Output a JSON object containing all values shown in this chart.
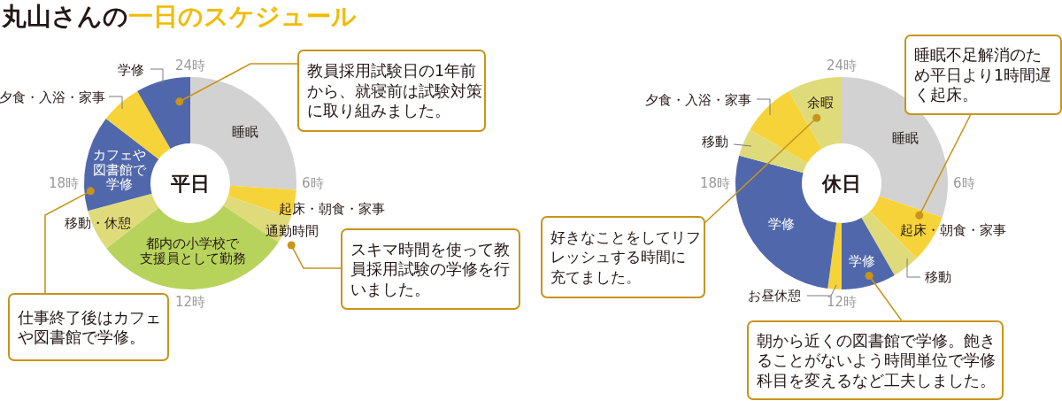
{
  "chart_data": [
    {
      "type": "donut",
      "title": "丸山さんの一日のスケジュール",
      "subtitle": "平日",
      "categories": [
        "睡眠",
        "起床・朝食・家事",
        "通勤時間",
        "都内の小学校で支援員として勤務",
        "移動・休憩",
        "カフェや図書館で学修",
        "夕食・入浴・家事",
        "学修"
      ],
      "values": [
        26.0,
        4.2,
        4.2,
        30.1,
        6.3,
        14.6,
        6.3,
        8.3
      ],
      "colors": [
        "#d3d2d2",
        "#f7d33a",
        "#dfdb7a",
        "#b8d35b",
        "#dfdb7a",
        "#5068ab",
        "#f7d33a",
        "#5068ab"
      ],
      "annotations": [
        "24時",
        "6時",
        "12時",
        "18時",
        "教員採用試験日の1年前から、就寝前は試験対策に取り組みました。",
        "スキマ時間を使って教員採用試験の学修を行いました。",
        "仕事終了後はカフェや図書館で学修。"
      ]
    },
    {
      "type": "donut",
      "subtitle": "休日",
      "categories": [
        "睡眠",
        "起床・朝食・家事",
        "移動",
        "学修",
        "お昼休憩",
        "学修",
        "移動",
        "夕食・入浴・家事",
        "余暇"
      ],
      "values": [
        30.2,
        7.3,
        4.2,
        8.3,
        2.1,
        27.1,
        4.2,
        8.3,
        8.3
      ],
      "colors": [
        "#d3d2d2",
        "#f7d33a",
        "#dfdb7a",
        "#5068ab",
        "#f7d33a",
        "#5068ab",
        "#dfdb7a",
        "#f7d33a",
        "#dfdb7a"
      ],
      "annotations": [
        "24時",
        "6時",
        "12時",
        "18時",
        "睡眠不足解消のため平日より1時間遅く起床。",
        "好きなことをしてリフレッシュする時間に充てました。",
        "朝から近くの図書館で学修。飽きることがないよう時間単位で学修科目を変えるなど工夫しました。"
      ]
    }
  ]
}
